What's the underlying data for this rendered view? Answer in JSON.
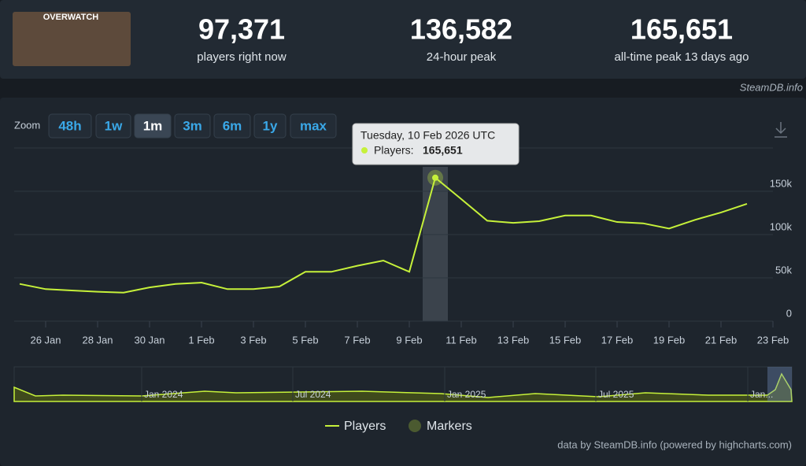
{
  "game_logo": "OVERWATCH",
  "stats": [
    {
      "value": "97,371",
      "label": "players right now"
    },
    {
      "value": "136,582",
      "label": "24-hour peak"
    },
    {
      "value": "165,651",
      "label": "all-time peak 13 days ago"
    }
  ],
  "source": "SteamDB.info",
  "zoom": {
    "label": "Zoom",
    "buttons": [
      "48h",
      "1w",
      "1m",
      "3m",
      "6m",
      "1y",
      "max"
    ]
  },
  "tooltip": {
    "title": "Tuesday, 10 Feb 2026 UTC",
    "name": "Players:",
    "value": "165,651"
  },
  "navigator_labels": [
    "Jan 2024",
    "Jul 2024",
    "Jan 2025",
    "Jul 2025",
    "Jan..."
  ],
  "legend": [
    "Players",
    "Markers"
  ],
  "credits": "data by SteamDB.info (powered by highcharts.com)",
  "chart_data": {
    "type": "line",
    "categories": [
      null,
      "26 Jan",
      null,
      "28 Jan",
      null,
      "30 Jan",
      null,
      "1 Feb",
      null,
      "3 Feb",
      null,
      "5 Feb",
      null,
      "7 Feb",
      null,
      "9 Feb",
      null,
      "11 Feb",
      null,
      "13 Feb",
      null,
      "15 Feb",
      null,
      "17 Feb",
      null,
      "19 Feb",
      null,
      "21 Feb",
      null,
      "23 Feb"
    ],
    "series": [
      {
        "name": "Players",
        "color": "#c6f13a",
        "values": [
          43000,
          37000,
          35500,
          34000,
          33000,
          39000,
          43000,
          44500,
          37000,
          37000,
          40000,
          57000,
          57000,
          64000,
          70000,
          57000,
          165651,
          141000,
          116000,
          113500,
          115500,
          122000,
          122000,
          114500,
          113000,
          107000,
          117000,
          125500,
          135500,
          null
        ]
      }
    ],
    "ylim": [
      0,
      200000
    ],
    "yticks": [
      0,
      {
        "value": 50000,
        "label": "50k"
      },
      {
        "value": 100000,
        "label": "100k"
      },
      {
        "value": 150000,
        "label": "150k"
      }
    ],
    "grid": true
  }
}
